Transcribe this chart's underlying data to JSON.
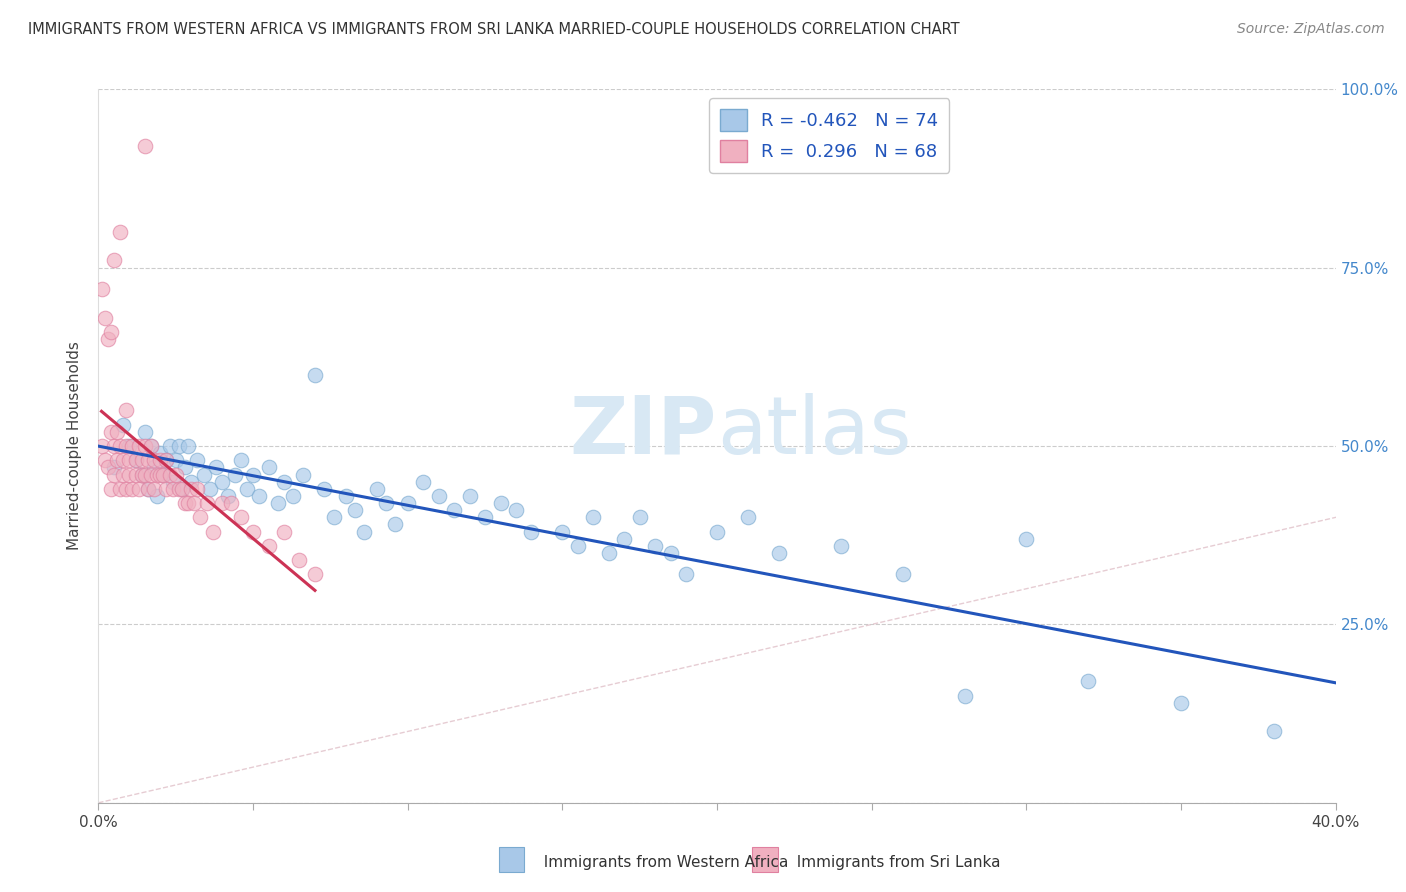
{
  "title": "IMMIGRANTS FROM WESTERN AFRICA VS IMMIGRANTS FROM SRI LANKA MARRIED-COUPLE HOUSEHOLDS CORRELATION CHART",
  "source": "Source: ZipAtlas.com",
  "xlabel_blue": "Immigrants from Western Africa",
  "xlabel_pink": "Immigrants from Sri Lanka",
  "ylabel": "Married-couple Households",
  "xlim": [
    0.0,
    0.4
  ],
  "ylim": [
    0.0,
    1.0
  ],
  "legend_blue_R": "-0.462",
  "legend_blue_N": "74",
  "legend_pink_R": "0.296",
  "legend_pink_N": "68",
  "blue_color": "#a8c8e8",
  "pink_color": "#f0b0c0",
  "blue_edge": "#7aaad0",
  "pink_edge": "#e080a0",
  "trend_blue": "#2255bb",
  "trend_pink": "#cc3355",
  "diagonal_color": "#e0c0c8",
  "watermark_color": "#d8e8f4",
  "blue_scatter_x": [
    0.005,
    0.008,
    0.01,
    0.012,
    0.014,
    0.015,
    0.016,
    0.017,
    0.018,
    0.019,
    0.02,
    0.021,
    0.022,
    0.023,
    0.024,
    0.025,
    0.026,
    0.027,
    0.028,
    0.029,
    0.03,
    0.032,
    0.034,
    0.036,
    0.038,
    0.04,
    0.042,
    0.044,
    0.046,
    0.048,
    0.05,
    0.052,
    0.055,
    0.058,
    0.06,
    0.063,
    0.066,
    0.07,
    0.073,
    0.076,
    0.08,
    0.083,
    0.086,
    0.09,
    0.093,
    0.096,
    0.1,
    0.105,
    0.11,
    0.115,
    0.12,
    0.125,
    0.13,
    0.135,
    0.14,
    0.15,
    0.155,
    0.16,
    0.165,
    0.17,
    0.175,
    0.18,
    0.185,
    0.19,
    0.2,
    0.21,
    0.22,
    0.24,
    0.26,
    0.28,
    0.3,
    0.32,
    0.35,
    0.38
  ],
  "blue_scatter_y": [
    0.47,
    0.53,
    0.5,
    0.48,
    0.46,
    0.52,
    0.44,
    0.5,
    0.47,
    0.43,
    0.49,
    0.46,
    0.48,
    0.5,
    0.45,
    0.48,
    0.5,
    0.44,
    0.47,
    0.5,
    0.45,
    0.48,
    0.46,
    0.44,
    0.47,
    0.45,
    0.43,
    0.46,
    0.48,
    0.44,
    0.46,
    0.43,
    0.47,
    0.42,
    0.45,
    0.43,
    0.46,
    0.6,
    0.44,
    0.4,
    0.43,
    0.41,
    0.38,
    0.44,
    0.42,
    0.39,
    0.42,
    0.45,
    0.43,
    0.41,
    0.43,
    0.4,
    0.42,
    0.41,
    0.38,
    0.38,
    0.36,
    0.4,
    0.35,
    0.37,
    0.4,
    0.36,
    0.35,
    0.32,
    0.38,
    0.4,
    0.35,
    0.36,
    0.32,
    0.15,
    0.37,
    0.17,
    0.14,
    0.1
  ],
  "pink_scatter_x": [
    0.001,
    0.002,
    0.003,
    0.004,
    0.004,
    0.005,
    0.005,
    0.006,
    0.006,
    0.007,
    0.007,
    0.008,
    0.008,
    0.009,
    0.009,
    0.01,
    0.01,
    0.011,
    0.011,
    0.012,
    0.012,
    0.013,
    0.013,
    0.014,
    0.014,
    0.015,
    0.015,
    0.016,
    0.016,
    0.017,
    0.017,
    0.018,
    0.018,
    0.019,
    0.02,
    0.02,
    0.021,
    0.022,
    0.022,
    0.023,
    0.024,
    0.025,
    0.026,
    0.027,
    0.028,
    0.029,
    0.03,
    0.031,
    0.032,
    0.033,
    0.035,
    0.037,
    0.04,
    0.043,
    0.046,
    0.05,
    0.055,
    0.06,
    0.065,
    0.07,
    0.001,
    0.002,
    0.003,
    0.004,
    0.005,
    0.007,
    0.009,
    0.015
  ],
  "pink_scatter_y": [
    0.5,
    0.48,
    0.47,
    0.52,
    0.44,
    0.5,
    0.46,
    0.48,
    0.52,
    0.44,
    0.5,
    0.46,
    0.48,
    0.44,
    0.5,
    0.46,
    0.48,
    0.44,
    0.5,
    0.46,
    0.48,
    0.44,
    0.5,
    0.46,
    0.48,
    0.5,
    0.46,
    0.48,
    0.44,
    0.5,
    0.46,
    0.48,
    0.44,
    0.46,
    0.46,
    0.48,
    0.46,
    0.44,
    0.48,
    0.46,
    0.44,
    0.46,
    0.44,
    0.44,
    0.42,
    0.42,
    0.44,
    0.42,
    0.44,
    0.4,
    0.42,
    0.38,
    0.42,
    0.42,
    0.4,
    0.38,
    0.36,
    0.38,
    0.34,
    0.32,
    0.72,
    0.68,
    0.65,
    0.66,
    0.76,
    0.8,
    0.55,
    0.92
  ]
}
